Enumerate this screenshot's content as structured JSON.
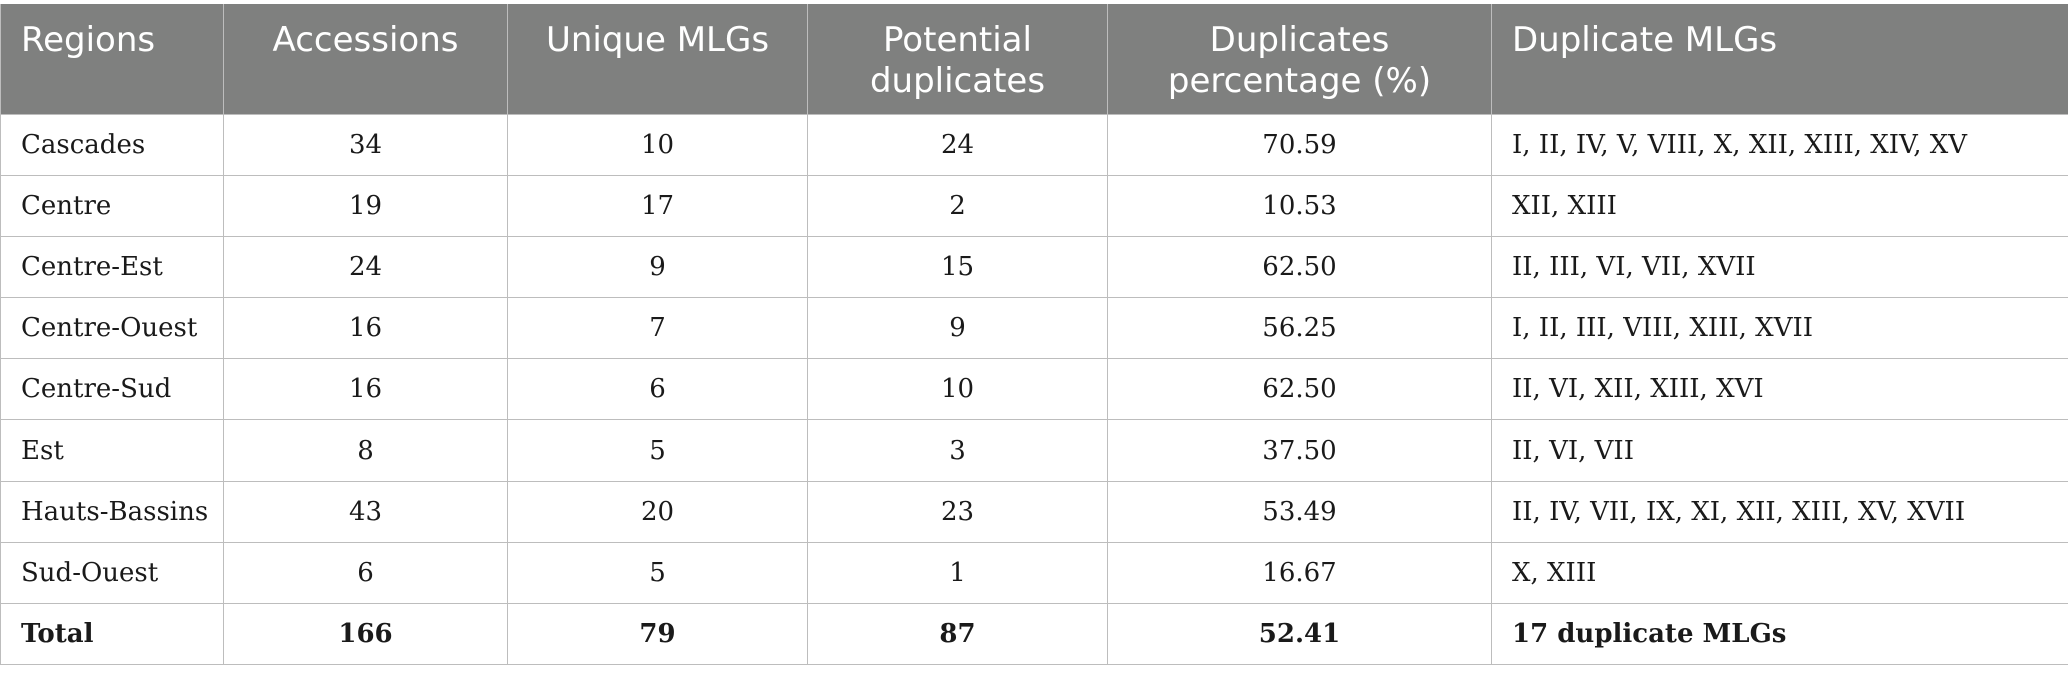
{
  "table": {
    "headers": [
      {
        "line1": "Regions",
        "line2": ""
      },
      {
        "line1": "Accessions",
        "line2": ""
      },
      {
        "line1": "Unique MLGs",
        "line2": ""
      },
      {
        "line1": "Potential",
        "line2": "duplicates"
      },
      {
        "line1": "Duplicates",
        "line2": "percentage (%)"
      },
      {
        "line1": "Duplicate MLGs",
        "line2": ""
      }
    ],
    "rows": [
      [
        "Cascades",
        "34",
        "10",
        "24",
        "70.59",
        "I, II, IV, V, VIII, X, XII, XIII, XIV, XV"
      ],
      [
        "Centre",
        "19",
        "17",
        "2",
        "10.53",
        "XII, XIII"
      ],
      [
        "Centre-Est",
        "24",
        "9",
        "15",
        "62.50",
        "II, III, VI, VII, XVII"
      ],
      [
        "Centre-Ouest",
        "16",
        "7",
        "9",
        "56.25",
        "I, II, III, VIII, XIII, XVII"
      ],
      [
        "Centre-Sud",
        "16",
        "6",
        "10",
        "62.50",
        "II, VI, XII, XIII, XVI"
      ],
      [
        "Est",
        "8",
        "5",
        "3",
        "37.50",
        "II, VI, VII"
      ],
      [
        "Hauts-Bassins",
        "43",
        "20",
        "23",
        "53.49",
        "II, IV, VII, IX, XI, XII, XIII, XV, XVII"
      ],
      [
        "Sud-Ouest",
        "6",
        "5",
        "1",
        "16.67",
        "X, XIII"
      ]
    ],
    "total": [
      "Total",
      "166",
      "79",
      "87",
      "52.41",
      "17 duplicate MLGs"
    ]
  },
  "colors": {
    "header_bg": "#7f807f",
    "header_text": "#ffffff",
    "grid": "#bdbdbd",
    "body_text": "#1a1a1a"
  }
}
